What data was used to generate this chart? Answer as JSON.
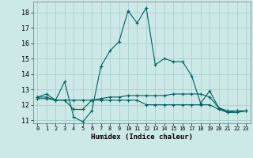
{
  "xlabel": "Humidex (Indice chaleur)",
  "background_color": "#cce9e7",
  "grid_color": "#aed4d1",
  "line_color": "#006060",
  "xlim": [
    -0.5,
    23.5
  ],
  "ylim": [
    10.8,
    18.7
  ],
  "yticks": [
    11,
    12,
    13,
    14,
    15,
    16,
    17,
    18
  ],
  "xticks": [
    0,
    1,
    2,
    3,
    4,
    5,
    6,
    7,
    8,
    9,
    10,
    11,
    12,
    13,
    14,
    15,
    16,
    17,
    18,
    19,
    20,
    21,
    22,
    23
  ],
  "series": [
    {
      "x": [
        0,
        1,
        2,
        3,
        4,
        5,
        6,
        7,
        8,
        9,
        10,
        11,
        12,
        13,
        14,
        15,
        16,
        17,
        18,
        19,
        20,
        21,
        22,
        23
      ],
      "y": [
        12.5,
        12.7,
        12.3,
        13.5,
        11.2,
        10.9,
        11.6,
        14.5,
        15.5,
        16.1,
        18.1,
        17.3,
        18.3,
        14.6,
        15.0,
        14.8,
        14.8,
        13.9,
        12.1,
        12.9,
        11.8,
        11.5,
        11.6,
        11.6
      ]
    },
    {
      "x": [
        0,
        1,
        2,
        3,
        4,
        5,
        6,
        7,
        8,
        9,
        10,
        11,
        12,
        13,
        14,
        15,
        16,
        17,
        18,
        19,
        20,
        21,
        22,
        23
      ],
      "y": [
        12.5,
        12.5,
        12.3,
        12.3,
        12.3,
        12.3,
        12.3,
        12.4,
        12.5,
        12.5,
        12.6,
        12.6,
        12.6,
        12.6,
        12.6,
        12.7,
        12.7,
        12.7,
        12.7,
        12.5,
        11.8,
        11.6,
        11.6,
        11.6
      ]
    },
    {
      "x": [
        0,
        1,
        2,
        3,
        4,
        5,
        6,
        7,
        8,
        9,
        10,
        11,
        12,
        13,
        14,
        15,
        16,
        17,
        18,
        19,
        20,
        21,
        22,
        23
      ],
      "y": [
        12.4,
        12.4,
        12.3,
        12.3,
        11.7,
        11.7,
        12.3,
        12.3,
        12.3,
        12.3,
        12.3,
        12.3,
        12.0,
        12.0,
        12.0,
        12.0,
        12.0,
        12.0,
        12.0,
        12.0,
        11.7,
        11.5,
        11.5,
        11.6
      ]
    }
  ]
}
